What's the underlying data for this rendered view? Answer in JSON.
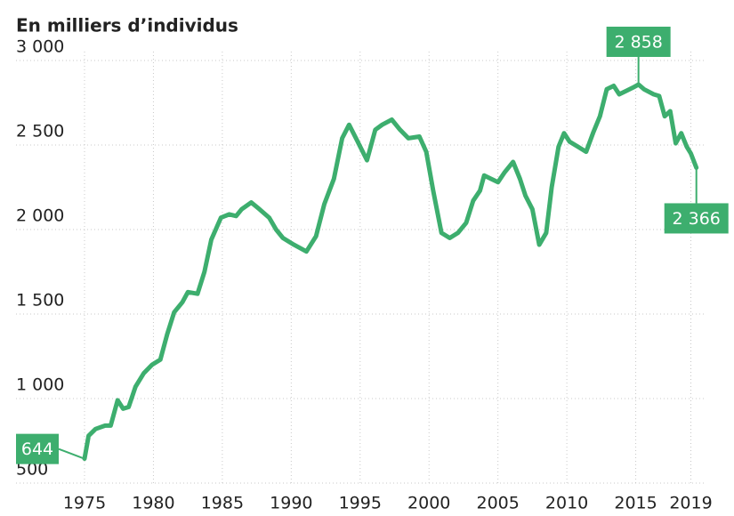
{
  "chart_data": {
    "type": "line",
    "title": "En milliers d’individus",
    "x": [
      1975.0,
      1975.3,
      1975.8,
      1976.5,
      1976.9,
      1977.4,
      1977.8,
      1978.2,
      1978.7,
      1979.3,
      1979.9,
      1980.5,
      1981.0,
      1981.5,
      1982.1,
      1982.5,
      1983.2,
      1983.7,
      1984.2,
      1984.9,
      1985.5,
      1986.0,
      1986.4,
      1987.1,
      1987.7,
      1988.4,
      1988.9,
      1989.4,
      1990.2,
      1991.1,
      1991.8,
      1992.4,
      1993.1,
      1993.7,
      1994.2,
      1994.7,
      1995.5,
      1996.1,
      1996.6,
      1997.3,
      1997.9,
      1998.5,
      1999.3,
      1999.8,
      2000.3,
      2000.9,
      2001.5,
      2002.1,
      2002.7,
      2003.2,
      2003.7,
      2004.0,
      2004.5,
      2005.0,
      2005.5,
      2006.1,
      2006.6,
      2007.0,
      2007.5,
      2008.0,
      2008.5,
      2008.9,
      2009.4,
      2009.8,
      2010.2,
      2010.8,
      2011.4,
      2011.9,
      2012.4,
      2012.9,
      2013.4,
      2013.8,
      2014.3,
      2014.8,
      2015.2,
      2015.6,
      2016.3,
      2016.7,
      2017.1,
      2017.5,
      2017.9,
      2018.3,
      2018.7,
      2019.0,
      2019.4
    ],
    "values": [
      644,
      780,
      820,
      840,
      840,
      990,
      940,
      950,
      1070,
      1150,
      1200,
      1230,
      1380,
      1510,
      1570,
      1630,
      1620,
      1750,
      1940,
      2070,
      2090,
      2080,
      2120,
      2160,
      2120,
      2070,
      2000,
      1950,
      1910,
      1870,
      1960,
      2150,
      2300,
      2540,
      2620,
      2540,
      2410,
      2590,
      2620,
      2650,
      2590,
      2540,
      2550,
      2460,
      2230,
      1980,
      1950,
      1980,
      2040,
      2170,
      2230,
      2320,
      2300,
      2280,
      2340,
      2400,
      2300,
      2200,
      2120,
      1910,
      1980,
      2250,
      2490,
      2570,
      2520,
      2490,
      2460,
      2570,
      2670,
      2830,
      2850,
      2800,
      2820,
      2840,
      2858,
      2830,
      2800,
      2790,
      2670,
      2700,
      2510,
      2570,
      2490,
      2450,
      2366
    ],
    "value_labels": [
      "644",
      null,
      null,
      null,
      null,
      null,
      null,
      null,
      null,
      null,
      null,
      null,
      null,
      null,
      null,
      null,
      null,
      null,
      null,
      null,
      null,
      null,
      null,
      null,
      null,
      null,
      null,
      null,
      null,
      null,
      null,
      null,
      null,
      null,
      null,
      null,
      null,
      null,
      null,
      null,
      null,
      null,
      null,
      null,
      null,
      null,
      null,
      null,
      null,
      null,
      null,
      null,
      null,
      null,
      null,
      null,
      null,
      null,
      null,
      null,
      null,
      null,
      null,
      null,
      null,
      null,
      null,
      null,
      null,
      null,
      null,
      null,
      null,
      null,
      "2 858",
      null,
      null,
      null,
      null,
      null,
      null,
      null,
      null,
      null,
      "2 366"
    ],
    "color": "#3dae6e",
    "xlim": [
      1975,
      2020
    ],
    "xticks": [
      1975,
      1980,
      1985,
      1990,
      1995,
      2000,
      2005,
      2010,
      2015,
      2019
    ],
    "ylim": [
      500,
      3000
    ],
    "yticks": [
      500,
      {
        "value": 1000,
        "label": "1 000"
      },
      {
        "value": 1500,
        "label": "1 500"
      },
      {
        "value": 2000,
        "label": "2 000"
      },
      {
        "value": 2500,
        "label": "2 500"
      },
      {
        "value": 3000,
        "label": "3 000"
      }
    ],
    "grid": true
  }
}
